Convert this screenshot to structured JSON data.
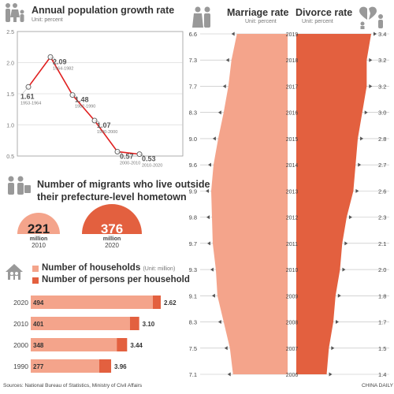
{
  "colors": {
    "light": "#f4a48b",
    "dark": "#e3603f",
    "gray": "#888888",
    "line": "#e02020"
  },
  "growth": {
    "title": "Annual population growth rate",
    "unit": "Unit: percent",
    "icon": "family-icon"
  },
  "migrants": {
    "title_line1": "Number of migrants who live outside",
    "title_line2": "their prefecture-level hometown",
    "icon": "people-icon",
    "items": [
      {
        "value": "221",
        "unit": "million",
        "year": "2010"
      },
      {
        "value": "376",
        "unit": "million",
        "year": "2020"
      }
    ]
  },
  "households": {
    "icon": "house-icon",
    "legend1": "Number of households",
    "legend1_unit": "(Unit: million)",
    "legend2": "Number of persons per household"
  },
  "marriage": {
    "title": "Marriage rate",
    "unit": "Unit: percent",
    "icon": "wedding-couple-icon"
  },
  "divorce": {
    "title": "Divorce rate",
    "unit": "Unit: percent",
    "icon": "broken-heart-icon"
  },
  "footer": {
    "sources": "Sources: National Bureau of Statistics, Ministry of Civil Affairs",
    "credit": "CHINA DAILY"
  },
  "chart_data": [
    {
      "type": "line",
      "yticks": [
        "2.5",
        "2.0",
        "1.5",
        "1.0",
        "0.5"
      ],
      "ylim": [
        0.5,
        2.5
      ],
      "points": [
        {
          "value": 1.61,
          "label": "1.61",
          "period": "1953-1964"
        },
        {
          "value": 2.09,
          "label": "2.09",
          "period": "1964-1982"
        },
        {
          "value": 1.48,
          "label": "1.48",
          "period": "1982-1990"
        },
        {
          "value": 1.07,
          "label": "1.07",
          "period": "1990-2000"
        },
        {
          "value": 0.57,
          "label": "0.57",
          "period": "2000-2010"
        },
        {
          "value": 0.53,
          "label": "0.53",
          "period": "2010-2020"
        }
      ]
    },
    {
      "type": "bar",
      "rows": [
        {
          "year": "2020",
          "households": 494,
          "households_label": "494",
          "persons": 2.62,
          "persons_label": "2.62"
        },
        {
          "year": "2010",
          "households": 401,
          "households_label": "401",
          "persons": 3.1,
          "persons_label": "3.10"
        },
        {
          "year": "2000",
          "households": 348,
          "households_label": "348",
          "persons": 3.44,
          "persons_label": "3.44"
        },
        {
          "year": "1990",
          "households": 277,
          "households_label": "277",
          "persons": 3.96,
          "persons_label": "3.96"
        }
      ]
    },
    {
      "type": "area",
      "years": [
        "2019",
        "2018",
        "2017",
        "2016",
        "2015",
        "2014",
        "2013",
        "2012",
        "2011",
        "2010",
        "2009",
        "2008",
        "2007",
        "2006"
      ],
      "marriage": [
        6.6,
        7.3,
        7.7,
        8.3,
        9.0,
        9.6,
        9.9,
        9.8,
        9.7,
        9.3,
        9.1,
        8.3,
        7.5,
        7.1
      ],
      "marriage_labels": [
        "6.6",
        "7.3",
        "7.7",
        "8.3",
        "9.0",
        "9.6",
        "9.9",
        "9.8",
        "9.7",
        "9.3",
        "9.1",
        "8.3",
        "7.5",
        "7.1"
      ],
      "divorce": [
        3.4,
        3.2,
        3.2,
        3.0,
        2.8,
        2.7,
        2.6,
        2.3,
        2.1,
        2.0,
        1.8,
        1.7,
        1.5,
        1.4
      ],
      "divorce_labels": [
        "3.4",
        "3.2",
        "3.2",
        "3.0",
        "2.8",
        "2.7",
        "2.6",
        "2.3",
        "2.1",
        "2.0",
        "1.8",
        "1.7",
        "1.5",
        "1.4"
      ]
    }
  ]
}
